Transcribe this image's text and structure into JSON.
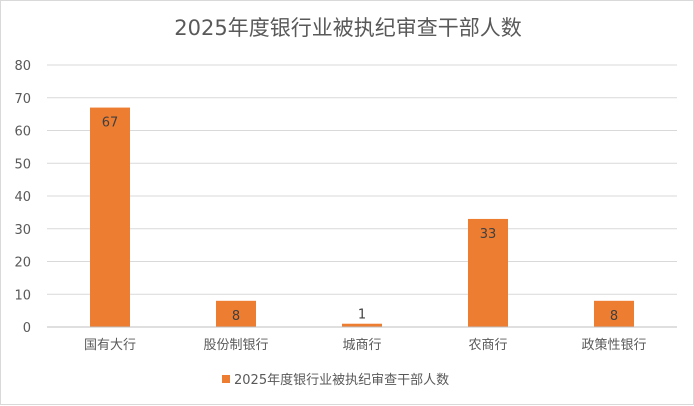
{
  "chart_data": {
    "type": "bar",
    "title": "2025年度银行业被执纪审查干部人数",
    "categories": [
      "国有大行",
      "股份制银行",
      "城商行",
      "农商行",
      "政策性银行"
    ],
    "series": [
      {
        "name": "2025年度银行业被执纪审查干部人数",
        "values": [
          67,
          8,
          1,
          33,
          8
        ],
        "color": "#ED7D31"
      }
    ],
    "ylim": [
      0,
      80
    ],
    "yticks": [
      0,
      10,
      20,
      30,
      40,
      50,
      60,
      70,
      80
    ],
    "grid": true,
    "legend": "bottom",
    "data_labels": true
  }
}
